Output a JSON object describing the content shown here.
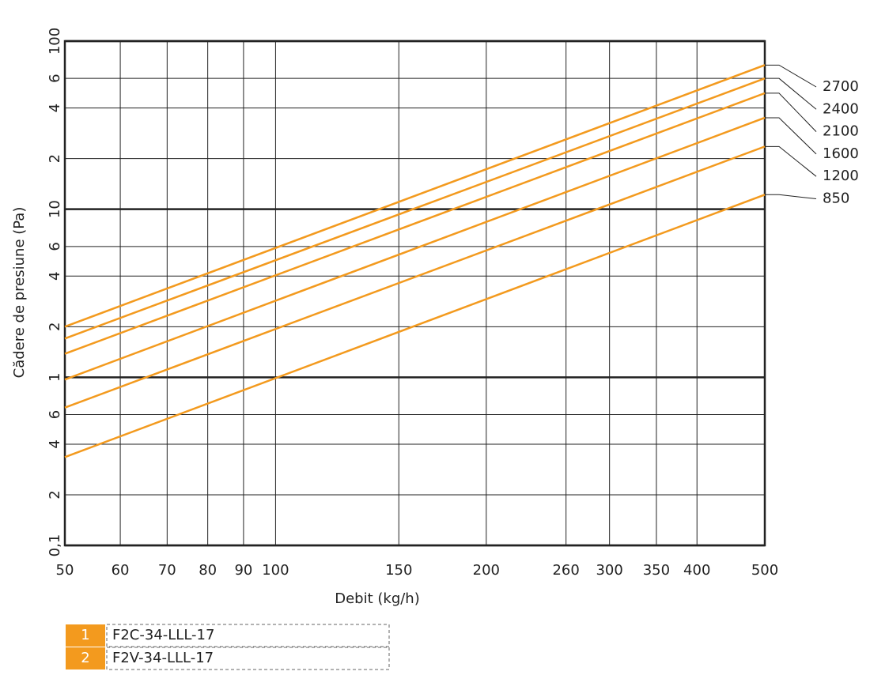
{
  "chart_data": {
    "type": "line",
    "x_label": "Debit (kg/h)",
    "y_label": "Cădere de presiune (Pa)",
    "x": [
      50,
      500
    ],
    "xlim": [
      50,
      500
    ],
    "xticks": [
      50,
      60,
      70,
      80,
      90,
      100,
      150,
      200,
      260,
      300,
      350,
      400,
      500
    ],
    "ylim": [
      0.1,
      100
    ],
    "yticks": [
      {
        "value": 0.1,
        "label": "0,1"
      },
      {
        "value": 0.2,
        "label": "2"
      },
      {
        "value": 0.4,
        "label": "4"
      },
      {
        "value": 0.6,
        "label": "6"
      },
      1,
      {
        "value": 2,
        "label": "2"
      },
      {
        "value": 4,
        "label": "4"
      },
      {
        "value": 6,
        "label": "6"
      },
      10,
      {
        "value": 20,
        "label": "2"
      },
      {
        "value": 40,
        "label": "4"
      },
      {
        "value": 60,
        "label": "6"
      },
      100
    ],
    "log_x": true,
    "log_y": true,
    "grid": true,
    "series": [
      {
        "name": "2700",
        "color": "#f39a1e",
        "values": [
          2.0,
          72
        ]
      },
      {
        "name": "2400",
        "color": "#f39a1e",
        "values": [
          1.7,
          60
        ]
      },
      {
        "name": "2100",
        "color": "#f39a1e",
        "values": [
          1.38,
          49
        ]
      },
      {
        "name": "1600",
        "color": "#f39a1e",
        "values": [
          0.97,
          35
        ]
      },
      {
        "name": "1200",
        "color": "#f39a1e",
        "values": [
          0.66,
          23.6
        ]
      },
      {
        "name": "850",
        "color": "#f39a1e",
        "values": [
          0.335,
          12.2
        ]
      }
    ]
  },
  "legend_table": {
    "rows": [
      [
        "1",
        "F2C-34-LLL-17"
      ],
      [
        "2",
        "F2V-34-LLL-17"
      ]
    ]
  }
}
